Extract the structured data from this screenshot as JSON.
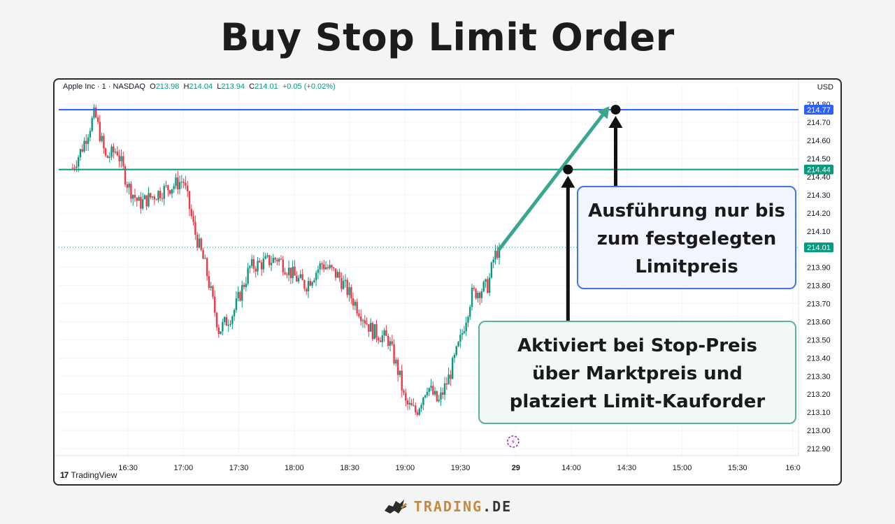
{
  "title": "Buy Stop Limit Order",
  "legend": {
    "symbol": "Apple Inc · 1 · NASDAQ",
    "o_label": "O",
    "o_value": "213.98",
    "h_label": "H",
    "h_value": "214.04",
    "l_label": "L",
    "l_value": "213.94",
    "c_label": "C",
    "c_value": "214.01",
    "change": "+0.05 (+0.02%)"
  },
  "currency": "USD",
  "tv_brand": "TradingView",
  "callouts": {
    "limit": [
      "Ausführung nur bis",
      "zum festgelegten",
      "Limitpreis"
    ],
    "stop": [
      "Aktiviert bei Stop-Preis",
      "über Marktpreis und",
      "platziert Limit-Kauforder"
    ]
  },
  "brand": {
    "part1": "TRADING",
    "part2": ".DE"
  },
  "colors": {
    "up": "#089981",
    "down": "#f23645",
    "limit_line": "#2962ff",
    "stop_line": "#089981",
    "arrow": "#3aa68f",
    "marker": "#111111"
  },
  "chart_data": {
    "type": "candlestick",
    "symbol": "AAPL",
    "ylim": [
      212.9,
      214.82
    ],
    "y_ticks": [
      "214.80",
      "214.70",
      "214.60",
      "214.50",
      "214.40",
      "214.30",
      "214.20",
      "214.10",
      "214.00",
      "213.90",
      "213.80",
      "213.70",
      "213.60",
      "213.50",
      "213.40",
      "213.30",
      "213.20",
      "213.10",
      "213.00",
      "212.90"
    ],
    "x_ticks": [
      {
        "label": "16:30",
        "t": 16.5
      },
      {
        "label": "17:00",
        "t": 17.0
      },
      {
        "label": "17:30",
        "t": 17.5
      },
      {
        "label": "18:00",
        "t": 18.0
      },
      {
        "label": "18:30",
        "t": 18.5
      },
      {
        "label": "19:00",
        "t": 19.0
      },
      {
        "label": "19:30",
        "t": 19.5
      },
      {
        "label": "29",
        "t": 20.0
      },
      {
        "label": "14:00",
        "t": 20.5
      },
      {
        "label": "14:30",
        "t": 21.0
      },
      {
        "label": "15:00",
        "t": 21.5
      },
      {
        "label": "15:30",
        "t": 22.0
      },
      {
        "label": "16:0",
        "t": 22.5
      }
    ],
    "levels": [
      {
        "name": "limit",
        "price": 214.77,
        "label": "214.77"
      },
      {
        "name": "stop",
        "price": 214.44,
        "label": "214.44"
      },
      {
        "name": "last",
        "price": 214.01,
        "label": "214.01"
      }
    ],
    "path_keypoints": [
      {
        "t": 16.0,
        "p": 214.45
      },
      {
        "t": 16.08,
        "p": 214.55
      },
      {
        "t": 16.2,
        "p": 214.75
      },
      {
        "t": 16.3,
        "p": 214.5
      },
      {
        "t": 16.4,
        "p": 214.55
      },
      {
        "t": 16.5,
        "p": 214.35
      },
      {
        "t": 16.6,
        "p": 214.25
      },
      {
        "t": 16.8,
        "p": 214.32
      },
      {
        "t": 17.0,
        "p": 214.38
      },
      {
        "t": 17.1,
        "p": 214.1
      },
      {
        "t": 17.2,
        "p": 213.9
      },
      {
        "t": 17.32,
        "p": 213.55
      },
      {
        "t": 17.45,
        "p": 213.65
      },
      {
        "t": 17.6,
        "p": 213.9
      },
      {
        "t": 17.85,
        "p": 213.95
      },
      {
        "t": 18.0,
        "p": 213.85
      },
      {
        "t": 18.1,
        "p": 213.8
      },
      {
        "t": 18.25,
        "p": 213.92
      },
      {
        "t": 18.4,
        "p": 213.85
      },
      {
        "t": 18.55,
        "p": 213.7
      },
      {
        "t": 18.7,
        "p": 213.55
      },
      {
        "t": 18.85,
        "p": 213.5
      },
      {
        "t": 18.95,
        "p": 213.3
      },
      {
        "t": 19.0,
        "p": 213.15
      },
      {
        "t": 19.1,
        "p": 213.1
      },
      {
        "t": 19.2,
        "p": 213.25
      },
      {
        "t": 19.3,
        "p": 213.15
      },
      {
        "t": 19.4,
        "p": 213.3
      },
      {
        "t": 19.5,
        "p": 213.5
      },
      {
        "t": 19.6,
        "p": 213.75
      },
      {
        "t": 19.75,
        "p": 213.8
      },
      {
        "t": 19.8,
        "p": 213.95
      },
      {
        "t": 19.85,
        "p": 214.01
      }
    ],
    "last_close": 214.01,
    "projection": {
      "from_t": 19.85,
      "from_p": 214.0,
      "to_t": 20.82,
      "to_p": 214.77
    },
    "markers": [
      {
        "name": "stop-point",
        "t": 20.47,
        "p": 214.44
      },
      {
        "name": "limit-point",
        "t": 20.9,
        "p": 214.77
      }
    ]
  }
}
